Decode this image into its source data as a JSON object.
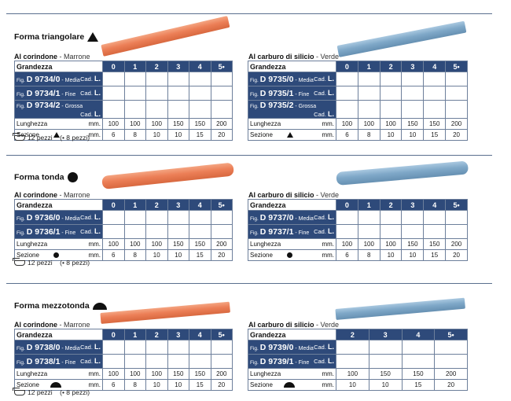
{
  "sections": [
    {
      "title": "Forma triangolare",
      "shape": "triangle-icon",
      "pack": "12 pezzi",
      "pack_alt": "(• 8 pezzi)",
      "tables": [
        {
          "caption": "Al corindone",
          "subcaption": " - Marrone",
          "rod_color": "#ec7f57",
          "header_label": "Grandezza",
          "sizes": [
            "0",
            "1",
            "2",
            "3",
            "4",
            "5•"
          ],
          "articles": [
            {
              "fig": "Fig.",
              "code": "D 9734/0",
              "grade": " - Media",
              "cad": "Cad.",
              "cad_unit": "L."
            },
            {
              "fig": "Fig.",
              "code": "D 9734/1",
              "grade": " - Fine",
              "cad": "Cad.",
              "cad_unit": "L."
            },
            {
              "fig": "Fig.",
              "code": "D 9734/2",
              "grade": " - Grossa",
              "cad": "Cad.",
              "cad_unit": "L."
            }
          ],
          "length_label": "Lunghezza",
          "length_unit": "mm.",
          "lengths": [
            "100",
            "100",
            "100",
            "150",
            "150",
            "200"
          ],
          "section_label": "Sezione",
          "section_unit": "mm.",
          "sections": [
            "6",
            "8",
            "10",
            "10",
            "15",
            "20"
          ]
        },
        {
          "caption": "Al carburo di silicio",
          "subcaption": " - Verde",
          "rod_color": "#7fa8c8",
          "header_label": "Grandezza",
          "sizes": [
            "0",
            "1",
            "2",
            "3",
            "4",
            "5•"
          ],
          "articles": [
            {
              "fig": "Fig.",
              "code": "D 9735/0",
              "grade": " - Media",
              "cad": "Cad.",
              "cad_unit": "L."
            },
            {
              "fig": "Fig.",
              "code": "D 9735/1",
              "grade": " - Fine",
              "cad": "Cad.",
              "cad_unit": "L."
            },
            {
              "fig": "Fig.",
              "code": "D 9735/2",
              "grade": " - Grossa",
              "cad": "Cad.",
              "cad_unit": "L."
            }
          ],
          "length_label": "Lunghezza",
          "length_unit": "mm.",
          "lengths": [
            "100",
            "100",
            "100",
            "150",
            "150",
            "200"
          ],
          "section_label": "Sezione",
          "section_unit": "mm.",
          "sections": [
            "6",
            "8",
            "10",
            "10",
            "15",
            "20"
          ]
        }
      ]
    },
    {
      "title": "Forma tonda",
      "shape": "circle-icon",
      "pack": "12 pezzi",
      "pack_alt": "(• 8 pezzi)",
      "tables": [
        {
          "caption": "Al corindone",
          "subcaption": " - Marrone",
          "rod_color": "#ec7f57",
          "header_label": "Grandezza",
          "sizes": [
            "0",
            "1",
            "2",
            "3",
            "4",
            "5•"
          ],
          "articles": [
            {
              "fig": "Fig.",
              "code": "D 9736/0",
              "grade": " - Media",
              "cad": "Cad.",
              "cad_unit": "L."
            },
            {
              "fig": "Fig.",
              "code": "D 9736/1",
              "grade": " - Fine",
              "cad": "Cad.",
              "cad_unit": "L."
            }
          ],
          "length_label": "Lunghezza",
          "length_unit": "mm.",
          "lengths": [
            "100",
            "100",
            "100",
            "150",
            "150",
            "200"
          ],
          "section_label": "Sezione",
          "section_unit": "mm.",
          "sections": [
            "6",
            "8",
            "10",
            "10",
            "15",
            "20"
          ]
        },
        {
          "caption": "Al carburo di silicio",
          "subcaption": " - Verde",
          "rod_color": "#7fa8c8",
          "header_label": "Grandezza",
          "sizes": [
            "0",
            "1",
            "2",
            "3",
            "4",
            "5•"
          ],
          "articles": [
            {
              "fig": "Fig.",
              "code": "D 9737/0",
              "grade": " - Media",
              "cad": "Cad.",
              "cad_unit": "L."
            },
            {
              "fig": "Fig.",
              "code": "D 9737/1",
              "grade": " - Fine",
              "cad": "Cad.",
              "cad_unit": "L."
            }
          ],
          "length_label": "Lunghezza",
          "length_unit": "mm.",
          "lengths": [
            "100",
            "100",
            "100",
            "150",
            "150",
            "200"
          ],
          "section_label": "Sezione",
          "section_unit": "mm.",
          "sections": [
            "6",
            "8",
            "10",
            "10",
            "15",
            "20"
          ]
        }
      ]
    },
    {
      "title": "Forma mezzotonda",
      "shape": "half-circle-icon",
      "pack": "12 pezzi",
      "pack_alt": "(• 8 pezzi)",
      "tables": [
        {
          "caption": "Al corindone",
          "subcaption": " - Marrone",
          "rod_color": "#ec7f57",
          "header_label": "Grandezza",
          "sizes": [
            "0",
            "1",
            "2",
            "3",
            "4",
            "5•"
          ],
          "articles": [
            {
              "fig": "Fig.",
              "code": "D 9738/0",
              "grade": " - Media",
              "cad": "Cad.",
              "cad_unit": "L."
            },
            {
              "fig": "Fig.",
              "code": "D 9738/1",
              "grade": " - Fine",
              "cad": "Cad.",
              "cad_unit": "L."
            }
          ],
          "length_label": "Lunghezza",
          "length_unit": "mm.",
          "lengths": [
            "100",
            "100",
            "100",
            "150",
            "150",
            "200"
          ],
          "section_label": "Sezione",
          "section_unit": "mm.",
          "sections": [
            "6",
            "8",
            "10",
            "10",
            "15",
            "20"
          ]
        },
        {
          "caption": "Al carburo di silicio",
          "subcaption": " - Verde",
          "rod_color": "#7fa8c8",
          "header_label": "Grandezza",
          "sizes": [
            "2",
            "3",
            "4",
            "5•"
          ],
          "articles": [
            {
              "fig": "Fig.",
              "code": "D 9739/0",
              "grade": " - Media",
              "cad": "Cad.",
              "cad_unit": "L."
            },
            {
              "fig": "Fig.",
              "code": "D 9739/1",
              "grade": " - Fine",
              "cad": "Cad.",
              "cad_unit": "L."
            }
          ],
          "length_label": "Lunghezza",
          "length_unit": "mm.",
          "lengths": [
            "100",
            "150",
            "150",
            "200"
          ],
          "section_label": "Sezione",
          "section_unit": "mm.",
          "sections": [
            "10",
            "10",
            "15",
            "20"
          ]
        }
      ]
    }
  ]
}
